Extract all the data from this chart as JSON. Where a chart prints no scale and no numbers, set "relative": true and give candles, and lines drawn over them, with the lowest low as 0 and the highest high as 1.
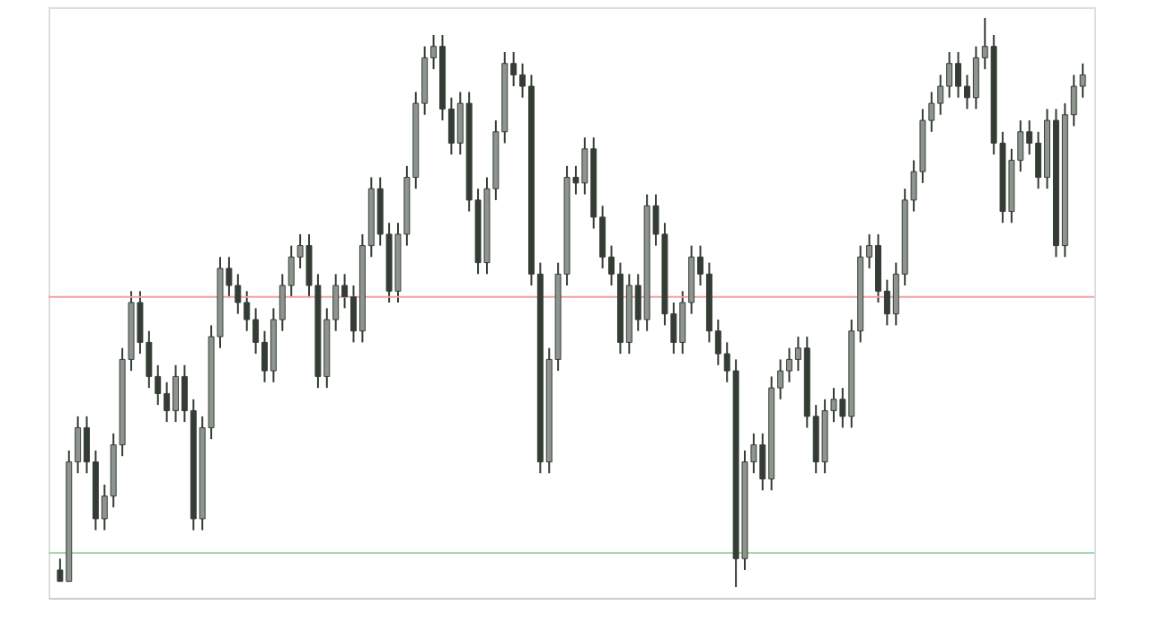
{
  "chart_data": {
    "type": "candlestick",
    "relative": true,
    "color": "#333d33",
    "categories": [
      null,
      null,
      null,
      null,
      null,
      null,
      null,
      null,
      null,
      null,
      null,
      null,
      null,
      null,
      null,
      null,
      null,
      null,
      null,
      null,
      null,
      null,
      null,
      null,
      null,
      null,
      null,
      null,
      null,
      null,
      null,
      null,
      null,
      null,
      null,
      null,
      null,
      null,
      null,
      null,
      null,
      null,
      null,
      null,
      null,
      null,
      null,
      null,
      null,
      null,
      null,
      null,
      null,
      null,
      null,
      null,
      null,
      null,
      null,
      null,
      null,
      null,
      null,
      null,
      null,
      null,
      null,
      null,
      null,
      null,
      null,
      null,
      null,
      null,
      null,
      null,
      null,
      null,
      null,
      null,
      null,
      null,
      null,
      null,
      null,
      null,
      null,
      null,
      null,
      null,
      null,
      null,
      null,
      null,
      null,
      null,
      null,
      null,
      null,
      null,
      null,
      null,
      null,
      null,
      null,
      null,
      null,
      null,
      null,
      null,
      null,
      null,
      null,
      null,
      null,
      null
    ],
    "ohlc": [
      [
        0.03,
        0.05,
        0.01,
        0.01
      ],
      [
        0.01,
        0.24,
        0.01,
        0.22
      ],
      [
        0.22,
        0.3,
        0.2,
        0.28
      ],
      [
        0.28,
        0.3,
        0.2,
        0.22
      ],
      [
        0.22,
        0.24,
        0.1,
        0.12
      ],
      [
        0.12,
        0.18,
        0.1,
        0.16
      ],
      [
        0.16,
        0.27,
        0.14,
        0.25
      ],
      [
        0.25,
        0.42,
        0.23,
        0.4
      ],
      [
        0.4,
        0.52,
        0.38,
        0.5
      ],
      [
        0.5,
        0.52,
        0.41,
        0.43
      ],
      [
        0.43,
        0.45,
        0.35,
        0.37
      ],
      [
        0.37,
        0.39,
        0.32,
        0.34
      ],
      [
        0.34,
        0.36,
        0.29,
        0.31
      ],
      [
        0.31,
        0.39,
        0.29,
        0.37
      ],
      [
        0.37,
        0.39,
        0.29,
        0.31
      ],
      [
        0.31,
        0.33,
        0.1,
        0.12
      ],
      [
        0.12,
        0.3,
        0.1,
        0.28
      ],
      [
        0.28,
        0.46,
        0.26,
        0.44
      ],
      [
        0.44,
        0.58,
        0.42,
        0.56
      ],
      [
        0.56,
        0.58,
        0.51,
        0.53
      ],
      [
        0.53,
        0.55,
        0.48,
        0.5
      ],
      [
        0.5,
        0.52,
        0.45,
        0.47
      ],
      [
        0.47,
        0.49,
        0.41,
        0.43
      ],
      [
        0.43,
        0.45,
        0.36,
        0.38
      ],
      [
        0.38,
        0.49,
        0.36,
        0.47
      ],
      [
        0.47,
        0.55,
        0.45,
        0.53
      ],
      [
        0.53,
        0.6,
        0.51,
        0.58
      ],
      [
        0.58,
        0.62,
        0.56,
        0.6
      ],
      [
        0.6,
        0.62,
        0.51,
        0.53
      ],
      [
        0.53,
        0.55,
        0.35,
        0.37
      ],
      [
        0.37,
        0.49,
        0.35,
        0.47
      ],
      [
        0.47,
        0.55,
        0.45,
        0.53
      ],
      [
        0.53,
        0.55,
        0.49,
        0.51
      ],
      [
        0.51,
        0.53,
        0.43,
        0.45
      ],
      [
        0.45,
        0.62,
        0.43,
        0.6
      ],
      [
        0.6,
        0.72,
        0.58,
        0.7
      ],
      [
        0.7,
        0.72,
        0.6,
        0.62
      ],
      [
        0.62,
        0.64,
        0.5,
        0.52
      ],
      [
        0.52,
        0.64,
        0.5,
        0.62
      ],
      [
        0.62,
        0.74,
        0.6,
        0.72
      ],
      [
        0.72,
        0.87,
        0.7,
        0.85
      ],
      [
        0.85,
        0.95,
        0.83,
        0.93
      ],
      [
        0.93,
        0.97,
        0.91,
        0.95
      ],
      [
        0.95,
        0.97,
        0.82,
        0.84
      ],
      [
        0.84,
        0.86,
        0.76,
        0.78
      ],
      [
        0.78,
        0.87,
        0.76,
        0.85
      ],
      [
        0.85,
        0.87,
        0.66,
        0.68
      ],
      [
        0.68,
        0.7,
        0.55,
        0.57
      ],
      [
        0.57,
        0.72,
        0.55,
        0.7
      ],
      [
        0.7,
        0.82,
        0.68,
        0.8
      ],
      [
        0.8,
        0.94,
        0.78,
        0.92
      ],
      [
        0.92,
        0.94,
        0.88,
        0.9
      ],
      [
        0.9,
        0.92,
        0.86,
        0.88
      ],
      [
        0.88,
        0.9,
        0.53,
        0.55
      ],
      [
        0.55,
        0.57,
        0.2,
        0.22
      ],
      [
        0.22,
        0.42,
        0.2,
        0.4
      ],
      [
        0.4,
        0.57,
        0.38,
        0.55
      ],
      [
        0.55,
        0.74,
        0.53,
        0.72
      ],
      [
        0.72,
        0.74,
        0.69,
        0.71
      ],
      [
        0.71,
        0.79,
        0.69,
        0.77
      ],
      [
        0.77,
        0.79,
        0.63,
        0.65
      ],
      [
        0.65,
        0.67,
        0.56,
        0.58
      ],
      [
        0.58,
        0.6,
        0.53,
        0.55
      ],
      [
        0.55,
        0.57,
        0.41,
        0.43
      ],
      [
        0.43,
        0.55,
        0.41,
        0.53
      ],
      [
        0.53,
        0.55,
        0.45,
        0.47
      ],
      [
        0.47,
        0.69,
        0.45,
        0.67
      ],
      [
        0.67,
        0.69,
        0.6,
        0.62
      ],
      [
        0.62,
        0.64,
        0.46,
        0.48
      ],
      [
        0.48,
        0.5,
        0.41,
        0.43
      ],
      [
        0.43,
        0.52,
        0.41,
        0.5
      ],
      [
        0.5,
        0.6,
        0.48,
        0.58
      ],
      [
        0.58,
        0.6,
        0.53,
        0.55
      ],
      [
        0.55,
        0.57,
        0.43,
        0.45
      ],
      [
        0.45,
        0.47,
        0.39,
        0.41
      ],
      [
        0.41,
        0.43,
        0.36,
        0.38
      ],
      [
        0.38,
        0.4,
        0.0,
        0.05
      ],
      [
        0.05,
        0.24,
        0.03,
        0.22
      ],
      [
        0.22,
        0.27,
        0.2,
        0.25
      ],
      [
        0.25,
        0.27,
        0.17,
        0.19
      ],
      [
        0.19,
        0.37,
        0.17,
        0.35
      ],
      [
        0.35,
        0.4,
        0.33,
        0.38
      ],
      [
        0.38,
        0.42,
        0.36,
        0.4
      ],
      [
        0.4,
        0.44,
        0.38,
        0.42
      ],
      [
        0.42,
        0.44,
        0.28,
        0.3
      ],
      [
        0.3,
        0.32,
        0.2,
        0.22
      ],
      [
        0.22,
        0.33,
        0.2,
        0.31
      ],
      [
        0.31,
        0.35,
        0.29,
        0.33
      ],
      [
        0.33,
        0.35,
        0.28,
        0.3
      ],
      [
        0.3,
        0.47,
        0.28,
        0.45
      ],
      [
        0.45,
        0.6,
        0.43,
        0.58
      ],
      [
        0.58,
        0.62,
        0.56,
        0.6
      ],
      [
        0.6,
        0.62,
        0.5,
        0.52
      ],
      [
        0.52,
        0.54,
        0.46,
        0.48
      ],
      [
        0.48,
        0.57,
        0.46,
        0.55
      ],
      [
        0.55,
        0.7,
        0.53,
        0.68
      ],
      [
        0.68,
        0.75,
        0.66,
        0.73
      ],
      [
        0.73,
        0.84,
        0.71,
        0.82
      ],
      [
        0.82,
        0.87,
        0.8,
        0.85
      ],
      [
        0.85,
        0.9,
        0.83,
        0.88
      ],
      [
        0.88,
        0.94,
        0.86,
        0.92
      ],
      [
        0.92,
        0.94,
        0.86,
        0.88
      ],
      [
        0.88,
        0.9,
        0.84,
        0.86
      ],
      [
        0.86,
        0.95,
        0.84,
        0.93
      ],
      [
        0.93,
        1.0,
        0.91,
        0.95
      ],
      [
        0.95,
        0.97,
        0.76,
        0.78
      ],
      [
        0.78,
        0.8,
        0.64,
        0.66
      ],
      [
        0.66,
        0.77,
        0.64,
        0.75
      ],
      [
        0.75,
        0.82,
        0.73,
        0.8
      ],
      [
        0.8,
        0.82,
        0.76,
        0.78
      ],
      [
        0.78,
        0.8,
        0.7,
        0.72
      ],
      [
        0.72,
        0.84,
        0.7,
        0.82
      ],
      [
        0.82,
        0.84,
        0.58,
        0.6
      ],
      [
        0.6,
        0.85,
        0.58,
        0.83
      ],
      [
        0.83,
        0.9,
        0.81,
        0.88
      ],
      [
        0.88,
        0.92,
        0.86,
        0.9
      ]
    ],
    "ref_lines": [
      {
        "axis": "y",
        "value": 0.51,
        "color": "#f0a0a0"
      },
      {
        "axis": "y",
        "value": 0.06,
        "color": "#a8d8a8"
      }
    ]
  }
}
